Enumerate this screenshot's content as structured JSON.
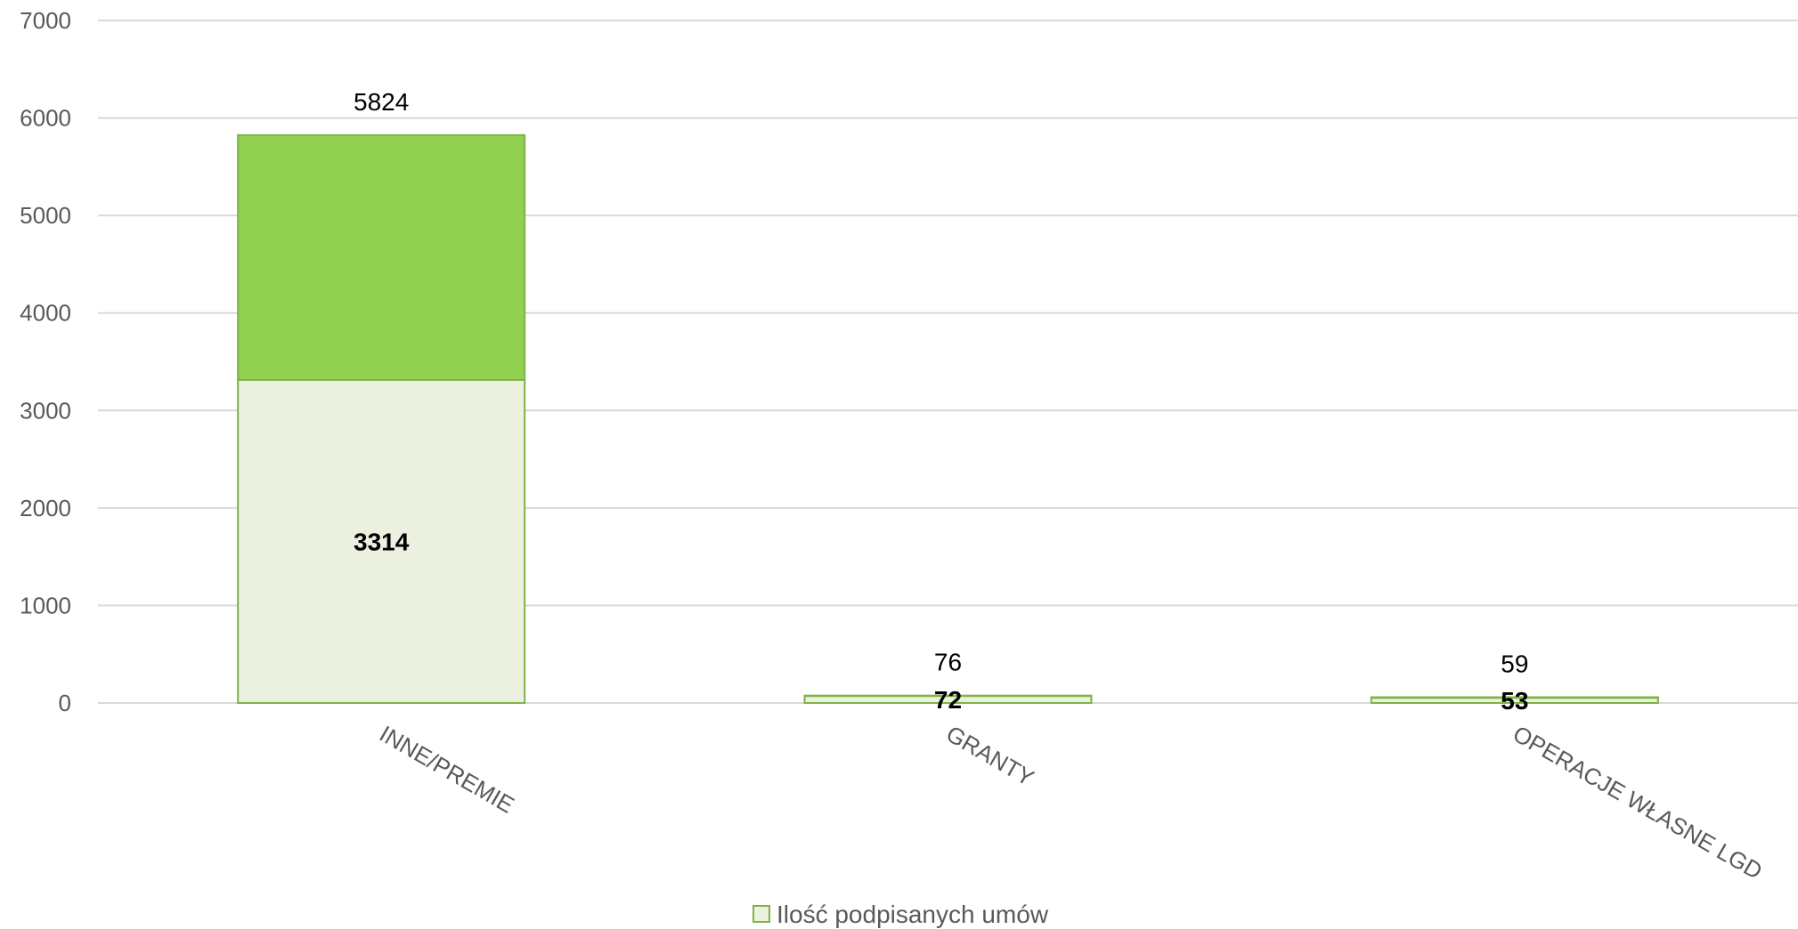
{
  "chart_data": {
    "type": "bar",
    "stacked": true,
    "categories": [
      "INNE/PREMIE",
      "GRANTY",
      "OPERACJE WŁASNE LGD"
    ],
    "series": [
      {
        "name": "Ilość podpisanych umów",
        "values": [
          3314,
          72,
          53
        ],
        "color": "#EBF0DF",
        "border": "#7EB346",
        "label_style": "bold-inside"
      },
      {
        "name": "",
        "values": [
          2510,
          4,
          6
        ],
        "color": "#92D050",
        "border": "#7EB346"
      }
    ],
    "totals": [
      5824,
      76,
      59
    ],
    "ylim": [
      0,
      7000
    ],
    "yticks": [
      0,
      1000,
      2000,
      3000,
      4000,
      5000,
      6000,
      7000
    ],
    "grid": true,
    "legend_position": "bottom",
    "title": "",
    "xlabel": "",
    "ylabel": "",
    "colors": {
      "grid": "#D9D9D9",
      "axis_text": "#595959"
    }
  }
}
